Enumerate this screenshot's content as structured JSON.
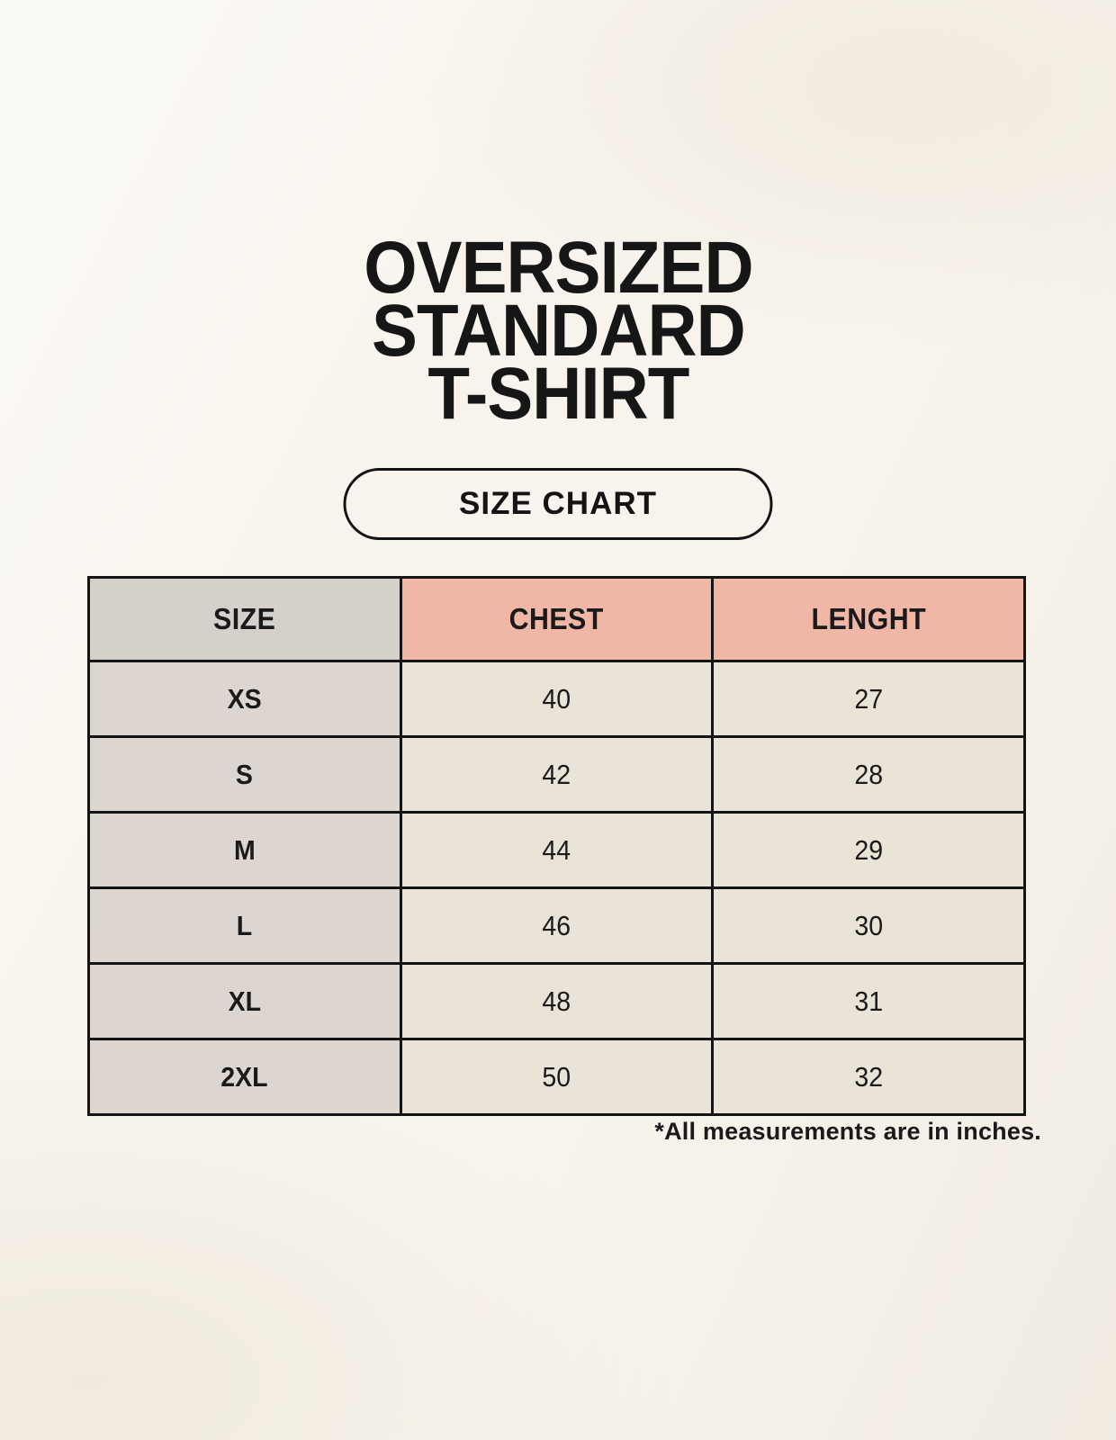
{
  "page": {
    "title_lines": [
      "OVERSIZED",
      "STANDARD",
      "T-SHIRT"
    ],
    "badge_label": "SIZE CHART",
    "footnote": "*All measurements are in inches."
  },
  "chart_data": {
    "type": "table",
    "title": "SIZE CHART",
    "columns": [
      "SIZE",
      "CHEST",
      "LENGHT"
    ],
    "categories": [
      "XS",
      "S",
      "M",
      "L",
      "XL",
      "2XL"
    ],
    "series": [
      {
        "name": "CHEST",
        "values": [
          40,
          42,
          44,
          46,
          48,
          50
        ]
      },
      {
        "name": "LENGHT",
        "values": [
          27,
          28,
          29,
          30,
          31,
          32
        ]
      }
    ],
    "rows": [
      [
        "XS",
        "40",
        "27"
      ],
      [
        "S",
        "42",
        "28"
      ],
      [
        "M",
        "44",
        "29"
      ],
      [
        "L",
        "46",
        "30"
      ],
      [
        "XL",
        "48",
        "31"
      ],
      [
        "2XL",
        "50",
        "32"
      ]
    ],
    "units": "inches"
  },
  "colors": {
    "background": "#f8f4ed",
    "table_border": "#141414",
    "header_size_bg": "#d6d0cb",
    "header_measure_bg": "#f0b7a6",
    "row_label_bg": "#dcd5d0",
    "cell_bg": "#eae3d8",
    "text": "#1a1a1a"
  }
}
